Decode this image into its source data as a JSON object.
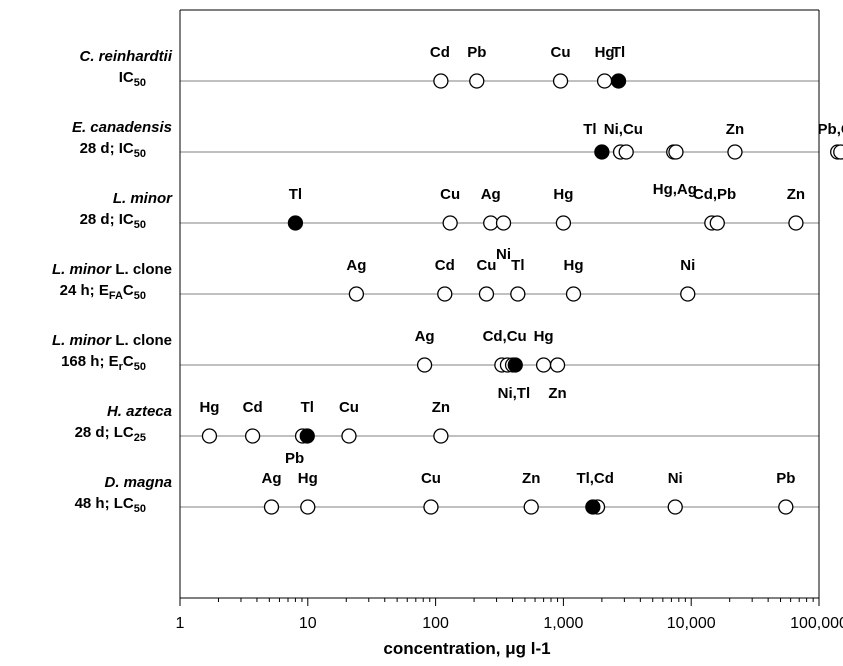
{
  "chart_data": {
    "type": "scatter",
    "xscale": "log",
    "xlim": [
      1,
      100000
    ],
    "xlabel": "concentration, μg l-1",
    "xticks": [
      "1",
      "10",
      "100",
      "1,000",
      "10,000",
      "100,000"
    ],
    "grid": "horizontal lines per row",
    "legend": "none",
    "marker_colors": {
      "open": "#ffffff",
      "filled": "#000000",
      "stroke": "#000000"
    },
    "rows": [
      {
        "species": "C. reinhardtii",
        "test": "IC",
        "test_sub": "50",
        "points": [
          {
            "element": "Cd",
            "x": 110
          },
          {
            "element": "Pb",
            "x": 210
          },
          {
            "element": "Cu",
            "x": 950
          },
          {
            "element": "Hg",
            "x": 2100
          },
          {
            "element": "Tl",
            "x": 2700,
            "filled": true
          }
        ],
        "labels": [
          "Cd",
          "Pb",
          "Cu",
          "Hg",
          "Tl"
        ]
      },
      {
        "species": "E. canadensis",
        "test": "28 d; IC",
        "test_sub": "50",
        "points": [
          {
            "element": "Tl",
            "x": 2000,
            "filled": true
          },
          {
            "element": "Ni",
            "x": 2800
          },
          {
            "element": "Cu",
            "x": 3100
          },
          {
            "element": "Hg",
            "x": 7300
          },
          {
            "element": "Ag",
            "x": 7600
          },
          {
            "element": "Zn",
            "x": 22000
          },
          {
            "element": "Pb",
            "x": 140000
          },
          {
            "element": "Cd",
            "x": 148000
          }
        ],
        "labels": [
          "Tl",
          "Ni,Cu",
          "Zn",
          "Pb,Cd",
          "Hg,Ag"
        ]
      },
      {
        "species": "L. minor",
        "test": "28 d; IC",
        "test_sub": "50",
        "points": [
          {
            "element": "Tl",
            "x": 8,
            "filled": true
          },
          {
            "element": "Cu",
            "x": 130
          },
          {
            "element": "Ag",
            "x": 270
          },
          {
            "element": "Ni",
            "x": 340
          },
          {
            "element": "Hg",
            "x": 1000
          },
          {
            "element": "Cd",
            "x": 14500
          },
          {
            "element": "Pb",
            "x": 16000
          },
          {
            "element": "Zn",
            "x": 66000
          }
        ],
        "labels": [
          "Tl",
          "Cu",
          "Ag",
          "Hg",
          "Cd,Pb",
          "Zn",
          "Ni"
        ]
      },
      {
        "species": "L. minor",
        "species_extra": "L. clone",
        "test": "24 h; E",
        "test_sub": "FA",
        "test_tail": "C",
        "test_tail_sub": "50",
        "points": [
          {
            "element": "Ag",
            "x": 24
          },
          {
            "element": "Cd",
            "x": 118
          },
          {
            "element": "Cu",
            "x": 250
          },
          {
            "element": "Tl",
            "x": 440
          },
          {
            "element": "Hg",
            "x": 1200
          },
          {
            "element": "Ni",
            "x": 9400
          }
        ],
        "labels": [
          "Ag",
          "Cd",
          "Cu",
          "Tl",
          "Hg",
          "Ni"
        ]
      },
      {
        "species": "L. minor",
        "species_extra": "L. clone",
        "test": "168 h; E",
        "test_sub": "r",
        "test_tail": "C",
        "test_tail_sub": "50",
        "points": [
          {
            "element": "Ag",
            "x": 82
          },
          {
            "element": "Cd",
            "x": 330
          },
          {
            "element": "Cu",
            "x": 365
          },
          {
            "element": "Ni",
            "x": 400
          },
          {
            "element": "Tl",
            "x": 420,
            "filled": true
          },
          {
            "element": "Hg",
            "x": 700
          },
          {
            "element": "Zn",
            "x": 900
          }
        ],
        "labels": [
          "Ag",
          "Cd,Cu",
          "Hg",
          "Ni,Tl",
          "Zn"
        ]
      },
      {
        "species": "H. azteca",
        "test": "28 d; LC",
        "test_sub": "25",
        "points": [
          {
            "element": "Hg",
            "x": 1.7
          },
          {
            "element": "Cd",
            "x": 3.7
          },
          {
            "element": "Pb",
            "x": 9.1
          },
          {
            "element": "Tl",
            "x": 9.9,
            "filled": true
          },
          {
            "element": "Cu",
            "x": 21
          },
          {
            "element": "Zn",
            "x": 110
          }
        ],
        "labels": [
          "Hg",
          "Cd",
          "Tl",
          "Cu",
          "Zn",
          "Pb"
        ]
      },
      {
        "species": "D. magna",
        "test": "48 h; LC",
        "test_sub": "50",
        "points": [
          {
            "element": "Ag",
            "x": 5.2
          },
          {
            "element": "Hg",
            "x": 10
          },
          {
            "element": "Cu",
            "x": 92
          },
          {
            "element": "Zn",
            "x": 560
          },
          {
            "element": "Tl",
            "x": 1700,
            "filled": true
          },
          {
            "element": "Cd",
            "x": 1850
          },
          {
            "element": "Ni",
            "x": 7500
          },
          {
            "element": "Pb",
            "x": 55000
          }
        ],
        "labels": [
          "Ag",
          "Hg",
          "Cu",
          "Zn",
          "Tl,Cd",
          "Ni",
          "Pb"
        ]
      }
    ]
  }
}
